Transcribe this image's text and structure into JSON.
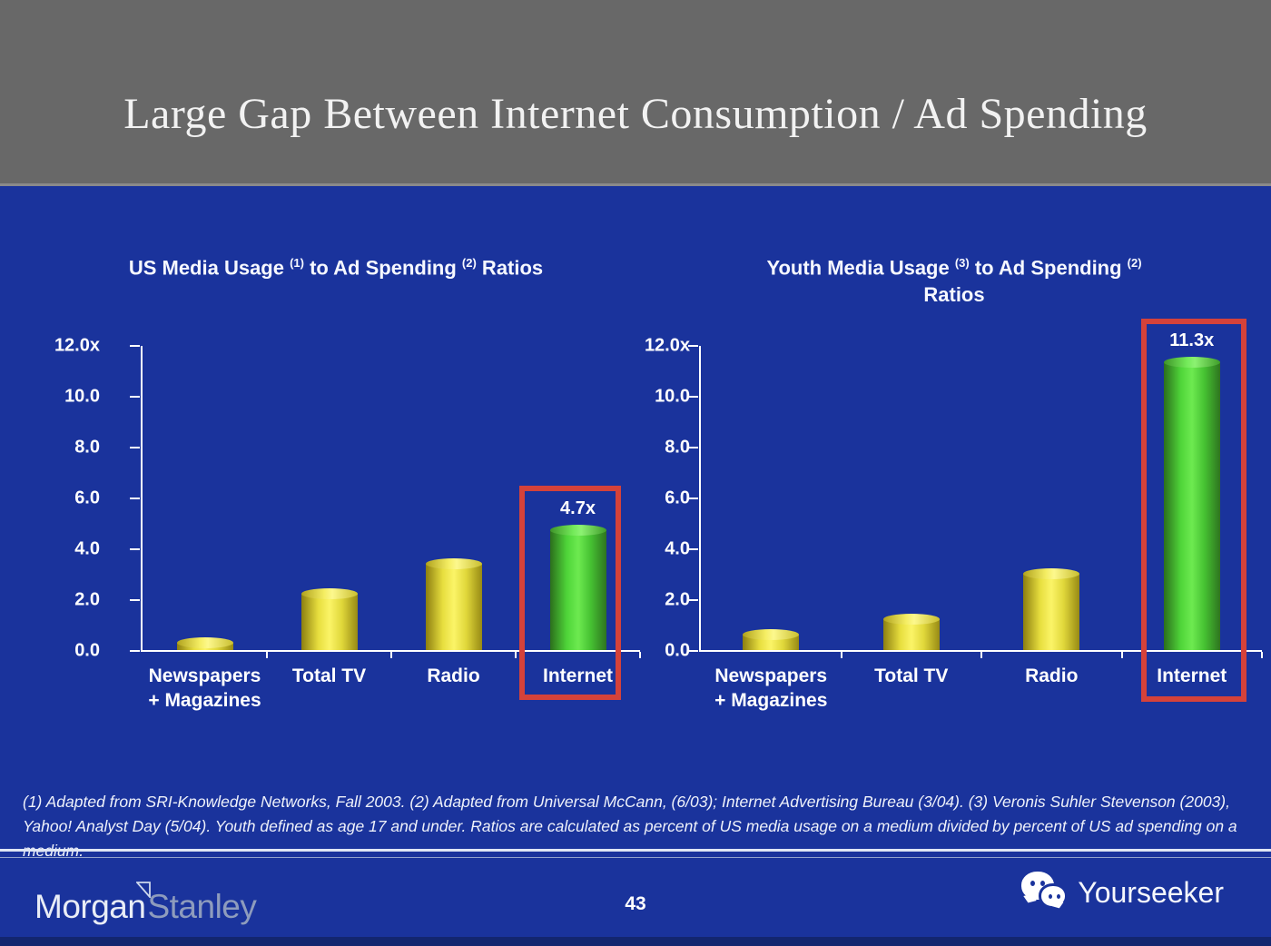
{
  "header": {
    "title": "Large Gap Between Internet Consumption / Ad Spending"
  },
  "colors": {
    "slide_blue": "#1a339c",
    "header_gray": "#686868",
    "bar_yellow": "#ece43c",
    "bar_green": "#54dc3c",
    "highlight_box_red": "#d5423a",
    "text_white": "#ffffff"
  },
  "charts": [
    {
      "title_seg1": "US Media Usage ",
      "sup1": "(1)",
      "title_seg2": " to Ad Spending ",
      "sup2": "(2)",
      "title_seg3": " Ratios"
    },
    {
      "title_seg1": "Youth Media Usage ",
      "sup1": "(3)",
      "title_seg2": " to Ad Spending ",
      "sup2": "(2)",
      "title_seg3": "Ratios"
    }
  ],
  "chart_data": [
    {
      "type": "bar",
      "title": "US Media Usage (1) to Ad Spending (2) Ratios",
      "categories": [
        "Newspapers + Magazines",
        "Total TV",
        "Radio",
        "Internet"
      ],
      "categories_display": [
        [
          "Newspapers",
          "+ Magazines"
        ],
        [
          "Total TV",
          ""
        ],
        [
          "Radio",
          ""
        ],
        [
          "Internet",
          ""
        ]
      ],
      "values": [
        0.3,
        2.2,
        3.4,
        4.7
      ],
      "ylim": [
        0,
        12
      ],
      "ytick_labels": [
        "12.0x",
        "10.0",
        "8.0",
        "6.0",
        "4.0",
        "2.0",
        "0.0"
      ],
      "grid": false,
      "legend": "none",
      "highlight_category": "Internet",
      "highlight_label": "4.7x"
    },
    {
      "type": "bar",
      "title": "Youth Media Usage (3) to Ad Spending (2) Ratios",
      "categories": [
        "Newspapers + Magazines",
        "Total TV",
        "Radio",
        "Internet"
      ],
      "categories_display": [
        [
          "Newspapers",
          "+ Magazines"
        ],
        [
          "Total TV",
          ""
        ],
        [
          "Radio",
          ""
        ],
        [
          "Internet",
          ""
        ]
      ],
      "values": [
        0.6,
        1.2,
        3.0,
        11.3
      ],
      "ylim": [
        0,
        12
      ],
      "ytick_labels": [
        "12.0x",
        "10.0",
        "8.0",
        "6.0",
        "4.0",
        "2.0",
        "0.0"
      ],
      "grid": false,
      "legend": "none",
      "highlight_category": "Internet",
      "highlight_label": "11.3x"
    }
  ],
  "footnote": {
    "text": "(1) Adapted from SRI-Knowledge Networks, Fall 2003.  (2) Adapted from Universal McCann, (6/03); Internet Advertising Bureau (3/04). (3) Veronis Suhler Stevenson (2003), Yahoo! Analyst Day (5/04).  Youth defined as age 17 and under.  Ratios are calculated as percent of US media usage on a medium divided by percent of US ad spending on a medium."
  },
  "footer": {
    "page_number": "43",
    "logo_morgan": "Morgan",
    "logo_stanley": "Stanley",
    "brand_right": "Yourseeker"
  }
}
